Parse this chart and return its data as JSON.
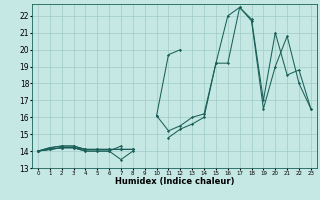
{
  "xlabel": "Humidex (Indice chaleur)",
  "bg_color": "#c5e8e5",
  "grid_color": "#a0ccc8",
  "line_color": "#1a6058",
  "xlim": [
    -0.5,
    23.5
  ],
  "ylim": [
    13.0,
    22.7
  ],
  "xticks": [
    0,
    1,
    2,
    3,
    4,
    5,
    6,
    7,
    8,
    9,
    10,
    11,
    12,
    13,
    14,
    15,
    16,
    17,
    18,
    19,
    20,
    21,
    22,
    23
  ],
  "yticks": [
    13,
    14,
    15,
    16,
    17,
    18,
    19,
    20,
    21,
    22
  ],
  "series": [
    [
      14.0,
      14.1,
      14.2,
      14.2,
      14.0,
      14.0,
      14.0,
      13.5,
      14.0,
      null,
      16.1,
      19.7,
      20.0,
      null,
      null,
      null,
      null,
      null,
      null,
      null,
      null,
      null,
      null,
      null
    ],
    [
      14.0,
      14.1,
      14.2,
      14.2,
      14.0,
      14.0,
      14.0,
      14.3,
      null,
      null,
      null,
      null,
      null,
      null,
      null,
      null,
      null,
      null,
      null,
      null,
      null,
      null,
      null,
      null
    ],
    [
      14.0,
      14.1,
      14.2,
      14.2,
      14.1,
      14.1,
      14.1,
      14.1,
      14.1,
      null,
      null,
      null,
      null,
      null,
      null,
      null,
      null,
      null,
      null,
      null,
      null,
      null,
      null,
      null
    ],
    [
      14.0,
      14.2,
      14.3,
      14.3,
      14.1,
      14.1,
      14.1,
      14.1,
      14.1,
      null,
      16.1,
      15.2,
      15.5,
      16.0,
      16.2,
      19.2,
      22.0,
      22.5,
      21.8,
      17.0,
      21.0,
      18.5,
      18.8,
      16.5
    ],
    [
      14.0,
      14.2,
      14.3,
      14.3,
      14.1,
      14.1,
      14.1,
      14.1,
      14.1,
      null,
      null,
      14.8,
      15.3,
      15.6,
      16.0,
      19.2,
      19.2,
      22.5,
      21.7,
      16.5,
      19.0,
      20.8,
      18.0,
      16.5
    ]
  ]
}
